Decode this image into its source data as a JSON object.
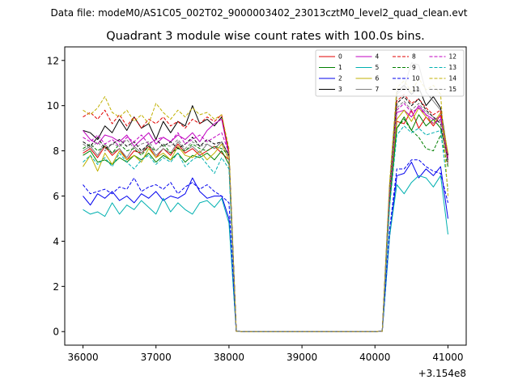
{
  "chart_data": {
    "type": "line",
    "suptitle": "Data file: modeM0/AS1C05_002T02_9000003402_23013cztM0_level2_quad_clean.evt",
    "title": "Quadrant 3 module wise count rates with 100.0s bins.",
    "xlabel": "",
    "ylabel": "",
    "x_offset_label": "+3.154e8",
    "xlim": [
      35750,
      41250
    ],
    "ylim": [
      -0.6,
      12.6
    ],
    "xticks": [
      36000,
      37000,
      38000,
      39000,
      40000,
      41000
    ],
    "xtick_labels": [
      "36000",
      "37000",
      "38000",
      "39000",
      "40000",
      "41000"
    ],
    "yticks": [
      0,
      2,
      4,
      6,
      8,
      10,
      12
    ],
    "ytick_labels": [
      "0",
      "2",
      "4",
      "6",
      "8",
      "10",
      "12"
    ],
    "legend_position": "top-right",
    "x": [
      36000,
      36100,
      36200,
      36300,
      36400,
      36500,
      36600,
      36700,
      36800,
      36900,
      37000,
      37100,
      37200,
      37300,
      37400,
      37500,
      37600,
      37700,
      37800,
      37900,
      38000,
      38100,
      38200,
      38300,
      38400,
      38500,
      38600,
      38700,
      38800,
      38900,
      39000,
      39100,
      39200,
      39300,
      39400,
      39500,
      39600,
      39700,
      39800,
      39900,
      40000,
      40100,
      40200,
      40300,
      40400,
      40500,
      40600,
      40700,
      40800,
      40900,
      41000
    ],
    "series": [
      {
        "name": "0",
        "color": "#e00000",
        "dash": "solid",
        "values": [
          7.9,
          8.1,
          7.7,
          8.2,
          7.8,
          8.1,
          7.6,
          8.0,
          7.9,
          8.2,
          7.7,
          8.1,
          7.8,
          8.3,
          7.9,
          8.1,
          7.8,
          8.0,
          8.2,
          7.9,
          7.6,
          0.02,
          0,
          0,
          0,
          0,
          0,
          0,
          0,
          0,
          0,
          0,
          0,
          0,
          0,
          0,
          0,
          0,
          0,
          0,
          0,
          0.02,
          5.8,
          9.3,
          9.2,
          9.8,
          9.0,
          9.5,
          9.1,
          9.6,
          7.8
        ]
      },
      {
        "name": "1",
        "color": "#008000",
        "dash": "solid",
        "values": [
          7.8,
          8.0,
          7.5,
          7.6,
          7.4,
          7.7,
          7.5,
          7.8,
          7.6,
          7.9,
          7.5,
          7.8,
          7.6,
          7.9,
          7.5,
          7.8,
          7.7,
          7.9,
          7.6,
          8.0,
          7.4,
          0.02,
          0,
          0,
          0,
          0,
          0,
          0,
          0,
          0,
          0,
          0,
          0,
          0,
          0,
          0,
          0,
          0,
          0,
          0,
          0,
          0.02,
          5.6,
          9.0,
          9.5,
          8.9,
          9.6,
          9.1,
          9.4,
          9.0,
          7.6
        ]
      },
      {
        "name": "2",
        "color": "#0000ee",
        "dash": "solid",
        "values": [
          6.0,
          5.6,
          6.1,
          5.9,
          6.2,
          5.8,
          6.0,
          5.7,
          6.1,
          5.9,
          6.2,
          5.8,
          6.0,
          5.9,
          6.1,
          6.8,
          6.2,
          5.9,
          6.0,
          6.0,
          5.0,
          0.02,
          0,
          0,
          0,
          0,
          0,
          0,
          0,
          0,
          0,
          0,
          0,
          0,
          0,
          0,
          0,
          0,
          0,
          0,
          0,
          0.02,
          4.2,
          6.9,
          7.0,
          7.5,
          6.8,
          7.2,
          6.9,
          7.3,
          5.0
        ]
      },
      {
        "name": "3",
        "color": "#000000",
        "dash": "solid",
        "values": [
          8.9,
          8.8,
          8.5,
          9.1,
          8.8,
          9.4,
          8.9,
          9.5,
          9.0,
          9.2,
          8.5,
          9.3,
          8.8,
          9.3,
          9.1,
          10.0,
          9.2,
          9.4,
          9.1,
          9.5,
          7.9,
          0.02,
          0,
          0,
          0,
          0,
          0,
          0,
          0,
          0,
          0,
          0,
          0,
          0,
          0,
          0,
          0,
          0,
          0,
          0,
          0,
          0.02,
          6.4,
          10.6,
          10.9,
          10.5,
          10.8,
          10.0,
          10.4,
          9.9,
          7.8
        ]
      },
      {
        "name": "4",
        "color": "#c000c0",
        "dash": "solid",
        "values": [
          8.9,
          8.5,
          8.3,
          8.7,
          8.6,
          8.4,
          8.7,
          8.2,
          8.5,
          8.8,
          8.3,
          8.6,
          8.4,
          8.7,
          8.5,
          8.8,
          8.4,
          8.9,
          9.2,
          9.4,
          7.8,
          0.02,
          0,
          0,
          0,
          0,
          0,
          0,
          0,
          0,
          0,
          0,
          0,
          0,
          0,
          0,
          0,
          0,
          0,
          0,
          0,
          0.02,
          5.9,
          9.7,
          9.8,
          9.5,
          10.0,
          9.6,
          9.4,
          9.5,
          7.6
        ]
      },
      {
        "name": "5",
        "color": "#00b0b0",
        "dash": "solid",
        "values": [
          5.4,
          5.2,
          5.3,
          5.1,
          5.7,
          5.2,
          5.6,
          5.4,
          5.8,
          5.5,
          5.2,
          5.9,
          5.3,
          5.7,
          5.4,
          5.2,
          5.7,
          5.8,
          5.5,
          5.9,
          4.8,
          0.02,
          0,
          0,
          0,
          0,
          0,
          0,
          0,
          0,
          0,
          0,
          0,
          0,
          0,
          0,
          0,
          0,
          0,
          0,
          0,
          0.02,
          4.2,
          6.5,
          6.1,
          6.6,
          6.9,
          6.8,
          6.4,
          6.9,
          4.3
        ]
      },
      {
        "name": "6",
        "color": "#c0b000",
        "dash": "solid",
        "values": [
          7.3,
          7.8,
          7.1,
          7.9,
          7.4,
          8.0,
          7.6,
          7.8,
          7.5,
          8.1,
          7.7,
          7.9,
          7.6,
          8.2,
          7.8,
          7.7,
          8.0,
          7.6,
          7.9,
          8.3,
          7.6,
          0.02,
          0,
          0,
          0,
          0,
          0,
          0,
          0,
          0,
          0,
          0,
          0,
          0,
          0,
          0,
          0,
          0,
          0,
          0,
          0,
          0.02,
          6.0,
          9.4,
          9.8,
          9.3,
          9.9,
          9.5,
          9.2,
          9.7,
          7.9
        ]
      },
      {
        "name": "7",
        "color": "#808080",
        "dash": "solid",
        "values": [
          8.0,
          8.2,
          7.8,
          8.3,
          7.9,
          8.1,
          7.7,
          8.2,
          7.9,
          8.3,
          7.8,
          8.1,
          7.9,
          8.4,
          8.0,
          8.2,
          7.9,
          8.3,
          8.1,
          8.4,
          7.8,
          0.02,
          0,
          0,
          0,
          0,
          0,
          0,
          0,
          0,
          0,
          0,
          0,
          0,
          0,
          0,
          0,
          0,
          0,
          0,
          0,
          0.02,
          6.3,
          10.5,
          10.8,
          11.9,
          11.8,
          10.6,
          10.2,
          9.8,
          7.5
        ]
      },
      {
        "name": "8",
        "color": "#e00000",
        "dash": "dashed",
        "values": [
          9.5,
          9.7,
          9.4,
          9.8,
          9.2,
          9.6,
          9.1,
          9.5,
          9.0,
          9.4,
          9.2,
          9.5,
          9.1,
          9.3,
          9.0,
          9.4,
          9.2,
          9.5,
          9.3,
          9.6,
          7.9,
          0.02,
          0,
          0,
          0,
          0,
          0,
          0,
          0,
          0,
          0,
          0,
          0,
          0,
          0,
          0,
          0,
          0,
          0,
          0,
          0,
          0.02,
          6.2,
          10.2,
          10.5,
          10.1,
          10.3,
          9.9,
          9.6,
          9.8,
          7.4
        ]
      },
      {
        "name": "9",
        "color": "#008000",
        "dash": "dashed",
        "values": [
          8.1,
          8.3,
          8.0,
          8.2,
          7.9,
          8.3,
          8.0,
          8.1,
          7.8,
          8.2,
          8.0,
          8.3,
          7.9,
          8.1,
          8.0,
          8.3,
          8.1,
          8.0,
          8.2,
          8.1,
          7.8,
          0.02,
          0,
          0,
          0,
          0,
          0,
          0,
          0,
          0,
          0,
          0,
          0,
          0,
          0,
          0,
          0,
          0,
          0,
          0,
          0,
          0.02,
          5.8,
          9.0,
          9.4,
          8.9,
          8.6,
          8.1,
          8.0,
          8.7,
          7.3
        ]
      },
      {
        "name": "10",
        "color": "#0000ee",
        "dash": "dashed",
        "values": [
          6.5,
          6.1,
          6.2,
          6.3,
          6.1,
          6.4,
          6.3,
          6.8,
          6.2,
          6.4,
          6.5,
          6.3,
          6.6,
          6.1,
          6.4,
          6.6,
          6.3,
          6.5,
          6.2,
          6.0,
          5.7,
          0.02,
          0,
          0,
          0,
          0,
          0,
          0,
          0,
          0,
          0,
          0,
          0,
          0,
          0,
          0,
          0,
          0,
          0,
          0,
          0,
          0.02,
          4.5,
          7.2,
          7.2,
          7.6,
          7.6,
          7.3,
          7.1,
          7.0,
          5.7
        ]
      },
      {
        "name": "11",
        "color": "#000000",
        "dash": "dashed",
        "values": [
          8.4,
          8.2,
          8.6,
          8.1,
          8.3,
          8.5,
          8.2,
          8.4,
          8.0,
          8.3,
          8.5,
          8.2,
          8.4,
          8.1,
          8.3,
          8.6,
          8.2,
          8.5,
          8.3,
          8.4,
          7.8,
          0.02,
          0,
          0,
          0,
          0,
          0,
          0,
          0,
          0,
          0,
          0,
          0,
          0,
          0,
          0,
          0,
          0,
          0,
          0,
          0,
          0.02,
          6.1,
          10.1,
          10.4,
          10.0,
          10.3,
          9.8,
          9.5,
          9.2,
          7.5
        ]
      },
      {
        "name": "12",
        "color": "#c000c0",
        "dash": "dashed",
        "values": [
          8.6,
          8.4,
          8.7,
          8.3,
          8.5,
          8.2,
          8.6,
          8.4,
          8.7,
          8.3,
          8.5,
          8.6,
          8.4,
          8.8,
          8.3,
          8.5,
          8.7,
          8.4,
          8.6,
          8.8,
          7.9,
          0.02,
          0,
          0,
          0,
          0,
          0,
          0,
          0,
          0,
          0,
          0,
          0,
          0,
          0,
          0,
          0,
          0,
          0,
          0,
          0,
          0.02,
          6.0,
          9.8,
          10.1,
          9.7,
          9.9,
          9.6,
          9.2,
          9.4,
          7.7
        ]
      },
      {
        "name": "13",
        "color": "#00b0b0",
        "dash": "dashed",
        "values": [
          7.5,
          7.8,
          7.4,
          7.7,
          7.3,
          7.9,
          7.5,
          7.2,
          7.6,
          7.8,
          7.4,
          7.7,
          7.5,
          7.9,
          7.3,
          7.6,
          7.8,
          7.4,
          7.0,
          7.7,
          7.2,
          0.02,
          0,
          0,
          0,
          0,
          0,
          0,
          0,
          0,
          0,
          0,
          0,
          0,
          0,
          0,
          0,
          0,
          0,
          0,
          0,
          0.02,
          5.5,
          8.7,
          9.1,
          8.8,
          9.0,
          8.7,
          8.8,
          8.9,
          6.3
        ]
      },
      {
        "name": "14",
        "color": "#c0b000",
        "dash": "dashed",
        "values": [
          9.8,
          9.6,
          9.9,
          10.4,
          9.7,
          9.5,
          9.8,
          9.3,
          9.6,
          9.2,
          10.1,
          9.7,
          9.4,
          9.8,
          9.5,
          9.9,
          9.6,
          9.7,
          9.4,
          9.6,
          8.1,
          0.02,
          0,
          0,
          0,
          0,
          0,
          0,
          0,
          0,
          0,
          0,
          0,
          0,
          0,
          0,
          0,
          0,
          0,
          0,
          0,
          0.02,
          6.6,
          10.8,
          11.1,
          10.6,
          11.2,
          10.7,
          10.9,
          10.5,
          6.0
        ]
      },
      {
        "name": "15",
        "color": "#808080",
        "dash": "dashed",
        "values": [
          8.3,
          8.1,
          8.4,
          8.0,
          8.3,
          8.2,
          8.5,
          8.1,
          8.3,
          8.4,
          8.0,
          8.3,
          8.2,
          8.5,
          8.1,
          8.4,
          8.2,
          8.3,
          8.1,
          8.4,
          7.7,
          0.02,
          0,
          0,
          0,
          0,
          0,
          0,
          0,
          0,
          0,
          0,
          0,
          0,
          0,
          0,
          0,
          0,
          0,
          0,
          0,
          0.02,
          6.2,
          9.9,
          10.2,
          9.8,
          10.1,
          9.7,
          9.5,
          9.3,
          7.4
        ]
      }
    ]
  }
}
